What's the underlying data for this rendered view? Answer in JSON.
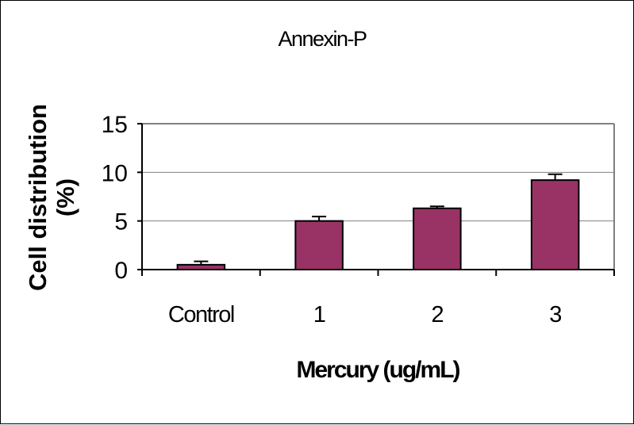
{
  "chart_data": {
    "type": "bar",
    "title": "Annexin-P",
    "xlabel": "Mercury (ug/mL)",
    "ylabel_lines": [
      "Cell distribution",
      "(%)"
    ],
    "categories": [
      "Control",
      "1",
      "2",
      "3"
    ],
    "values": [
      0.5,
      5.0,
      6.3,
      9.2
    ],
    "errors": [
      0.35,
      0.45,
      0.2,
      0.6
    ],
    "ylim": [
      0,
      15
    ],
    "yticks": [
      "0",
      "5",
      "10",
      "15"
    ],
    "grid": true,
    "colors": {
      "bar_fill": "#993366",
      "bar_stroke": "#000000",
      "plot_border": "#808080",
      "gridline": "#808080",
      "axis": "#000000"
    }
  }
}
